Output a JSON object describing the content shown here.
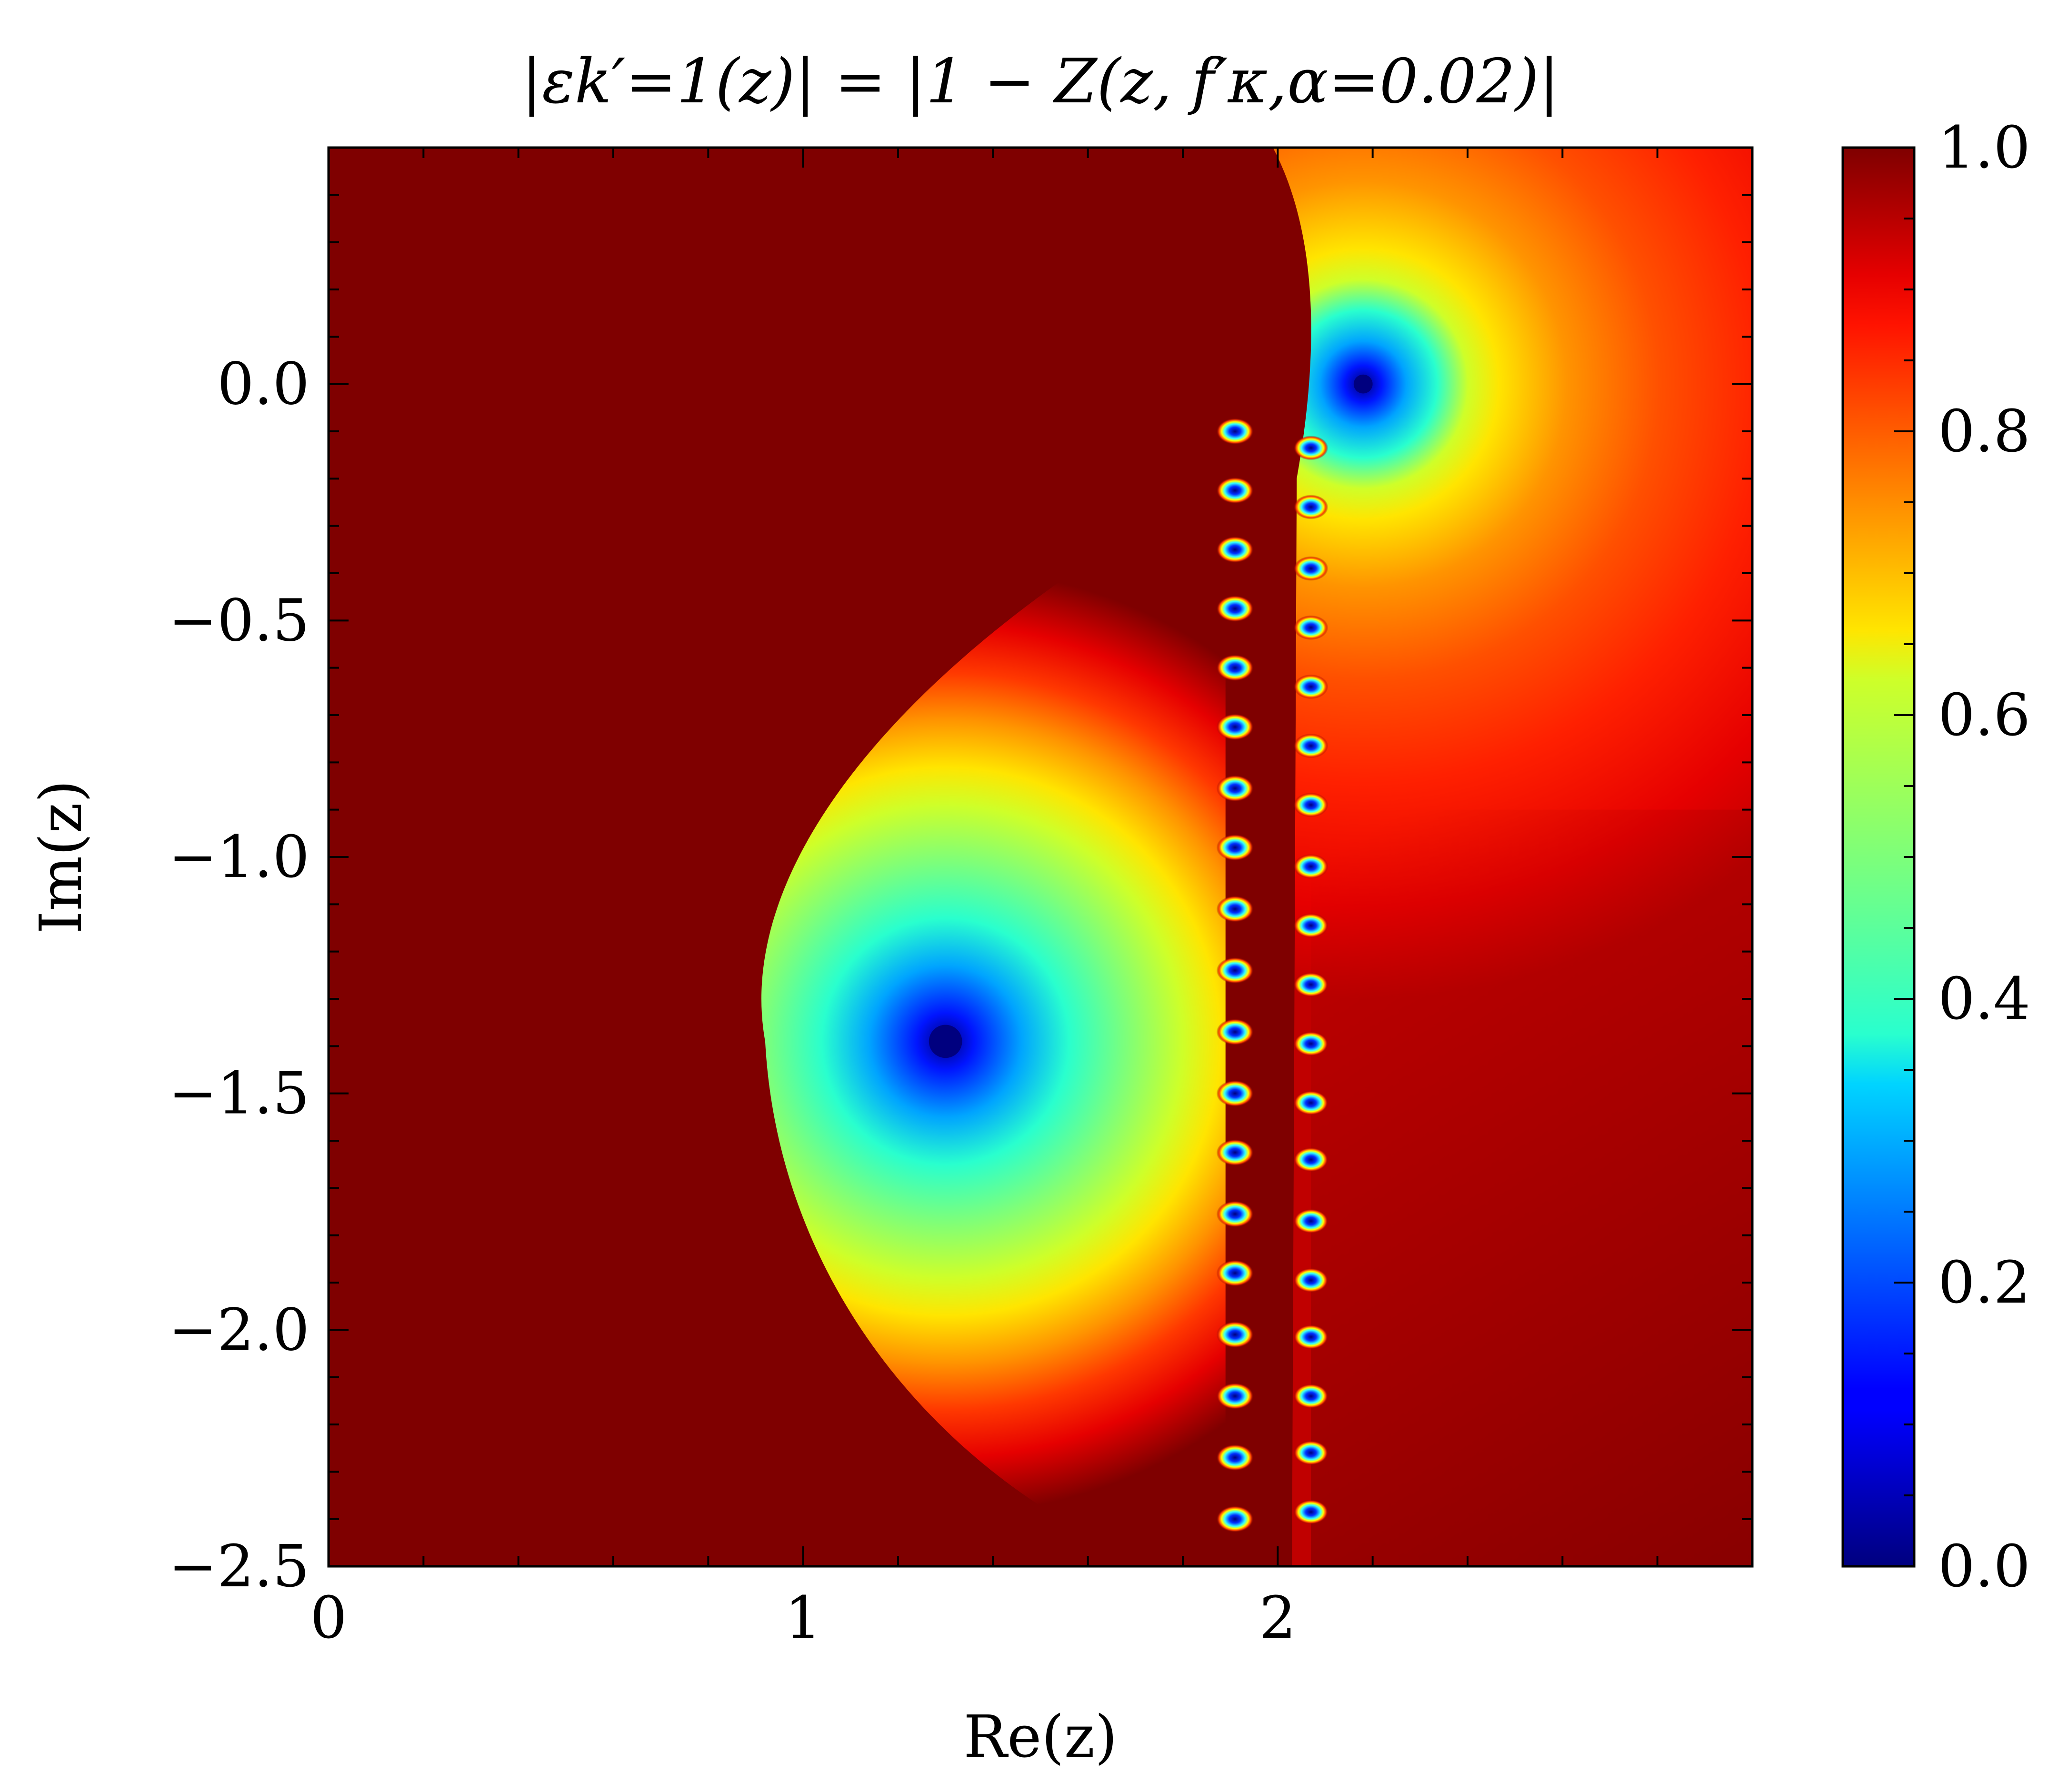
{
  "chart_data": {
    "type": "heatmap",
    "title": "|εk′=1(z)| = |1 − Z(z, f′κ,α=0.02)|",
    "xlabel": "Re(z)",
    "ylabel": "Im(z)",
    "xlim": [
      0,
      3
    ],
    "ylim": [
      -2.5,
      0.5
    ],
    "x_ticks": [
      0,
      1,
      2
    ],
    "x_tick_labels": [
      "0",
      "1",
      "2"
    ],
    "y_ticks": [
      0.0,
      -0.5,
      -1.0,
      -1.5,
      -2.0,
      -2.5
    ],
    "y_tick_labels": [
      "0.0",
      "−0.5",
      "−1.0",
      "−1.5",
      "−2.0",
      "−2.5"
    ],
    "colormap": "jet",
    "colorbar": {
      "range": [
        0.0,
        1.0
      ],
      "ticks": [
        0.0,
        0.2,
        0.4,
        0.6,
        0.8,
        1.0
      ],
      "tick_labels": [
        "0.0",
        "0.2",
        "0.4",
        "0.6",
        "0.8",
        "1.0"
      ]
    },
    "minima": [
      {
        "x": 1.3,
        "y": -1.39,
        "value": 0.0
      },
      {
        "x": 2.18,
        "y": 0.0,
        "value": 0.0
      }
    ],
    "zero_chain_left": {
      "x": 1.91,
      "y": [
        -0.1,
        -0.225,
        -0.35,
        -0.475,
        -0.6,
        -0.725,
        -0.855,
        -0.98,
        -1.11,
        -1.24,
        -1.37,
        -1.5,
        -1.625,
        -1.755,
        -1.88,
        -2.01,
        -2.14,
        -2.27,
        -2.4
      ]
    },
    "zero_chain_right": {
      "x": 2.07,
      "y": [
        -0.135,
        -0.26,
        -0.39,
        -0.515,
        -0.64,
        -0.765,
        -0.89,
        -1.02,
        -1.145,
        -1.27,
        -1.395,
        -1.52,
        -1.64,
        -1.77,
        -1.895,
        -2.015,
        -2.14,
        -2.26,
        -2.385
      ]
    },
    "grid": false
  }
}
